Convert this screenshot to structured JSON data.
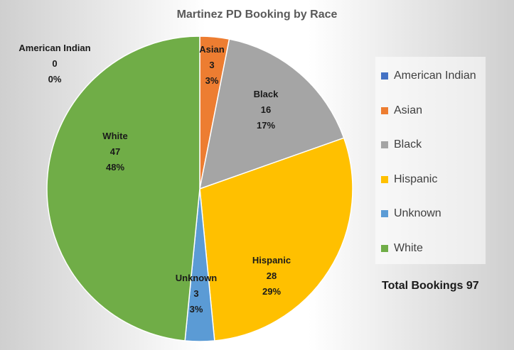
{
  "chart_data": {
    "type": "pie",
    "title": "Martinez PD Booking by Race",
    "slices": [
      {
        "name": "American Indian",
        "value": 0,
        "percent": "0%",
        "color": "#4472C4"
      },
      {
        "name": "Asian",
        "value": 3,
        "percent": "3%",
        "color": "#ED7D31"
      },
      {
        "name": "Black",
        "value": 16,
        "percent": "17%",
        "color": "#A5A5A5"
      },
      {
        "name": "Hispanic",
        "value": 28,
        "percent": "29%",
        "color": "#FFC000"
      },
      {
        "name": "Unknown",
        "value": 3,
        "percent": "3%",
        "color": "#5B9BD5"
      },
      {
        "name": "White",
        "value": 47,
        "percent": "48%",
        "color": "#70AD47"
      }
    ],
    "legend_position": "right",
    "total_label": "Total Bookings 97"
  }
}
